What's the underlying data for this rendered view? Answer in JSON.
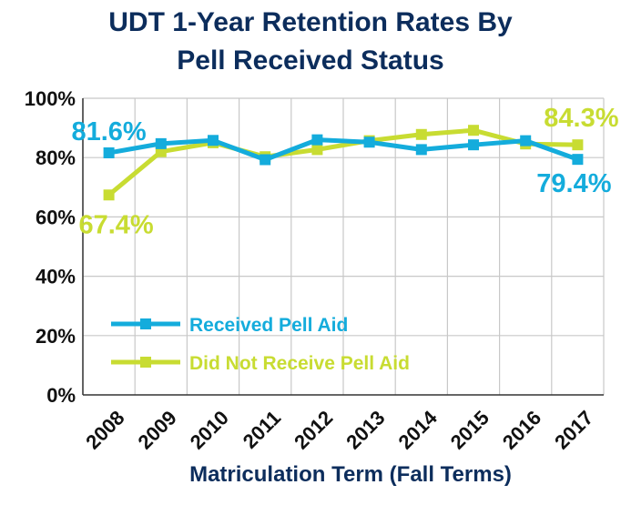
{
  "chart_data": {
    "type": "line",
    "title_lines": [
      "UDT 1-Year Retention Rates By",
      "Pell Received Status"
    ],
    "xlabel": "Matriculation Term (Fall Terms)",
    "ylabel": "",
    "ylim": [
      0,
      100
    ],
    "y_ticks": [
      {
        "value": 0,
        "label": "0%"
      },
      {
        "value": 20,
        "label": "20%"
      },
      {
        "value": 40,
        "label": "40%"
      },
      {
        "value": 60,
        "label": "60%"
      },
      {
        "value": 80,
        "label": "80%"
      },
      {
        "value": 100,
        "label": "100%"
      }
    ],
    "x": [
      "2008",
      "2009",
      "2010",
      "2011",
      "2012",
      "2013",
      "2014",
      "2015",
      "2016",
      "2017"
    ],
    "grid": {
      "horizontal": true,
      "vertical": true
    },
    "legend_position": "inside-lower-left",
    "series": [
      {
        "name": "Received Pell Aid",
        "color": "#14ACDC",
        "values": [
          81.6,
          84.7,
          85.8,
          79.3,
          86.0,
          85.2,
          82.7,
          84.3,
          85.7,
          79.4
        ]
      },
      {
        "name": "Did Not Receive Pell Aid",
        "color": "#C8DC32",
        "values": [
          67.4,
          82.0,
          85.0,
          80.3,
          82.7,
          85.7,
          87.8,
          89.2,
          84.6,
          84.3
        ]
      }
    ],
    "annotations": [
      {
        "text": "81.6%",
        "series": 0,
        "point": 0
      },
      {
        "text": "67.4%",
        "series": 1,
        "point": 0
      },
      {
        "text": "84.3%",
        "series": 1,
        "point": 9
      },
      {
        "text": "79.4%",
        "series": 0,
        "point": 9
      }
    ],
    "colors": {
      "title": "#0C2D5C",
      "axis_text": "#111111",
      "grid": "#C8C8C8",
      "axis": "#333333"
    }
  }
}
